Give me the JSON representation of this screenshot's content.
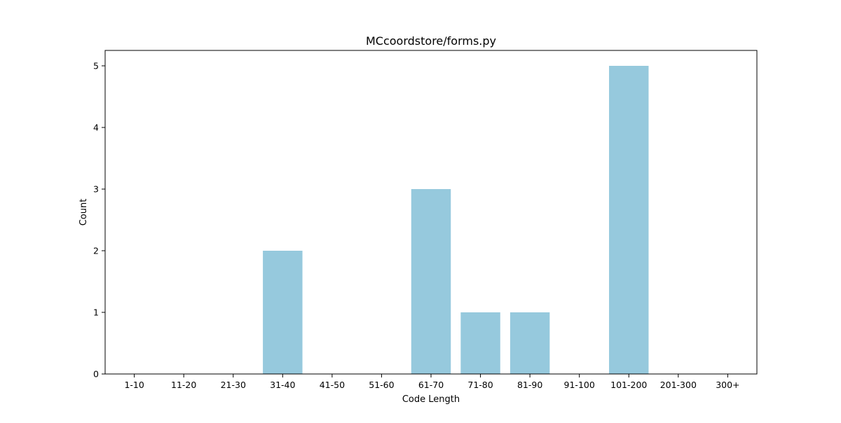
{
  "chart_data": {
    "type": "bar",
    "title": "MCcoordstore/forms.py",
    "xlabel": "Code Length",
    "ylabel": "Count",
    "categories": [
      "1-10",
      "11-20",
      "21-30",
      "31-40",
      "41-50",
      "51-60",
      "61-70",
      "71-80",
      "81-90",
      "91-100",
      "101-200",
      "201-300",
      "300+"
    ],
    "values": [
      0,
      0,
      0,
      2,
      0,
      0,
      3,
      1,
      1,
      0,
      5,
      0,
      0
    ],
    "ylim": [
      0,
      5.25
    ],
    "yticks": [
      "0",
      "1",
      "2",
      "3",
      "4",
      "5"
    ],
    "bar_color": "#96c9dd",
    "grid": false,
    "legend": "none"
  }
}
